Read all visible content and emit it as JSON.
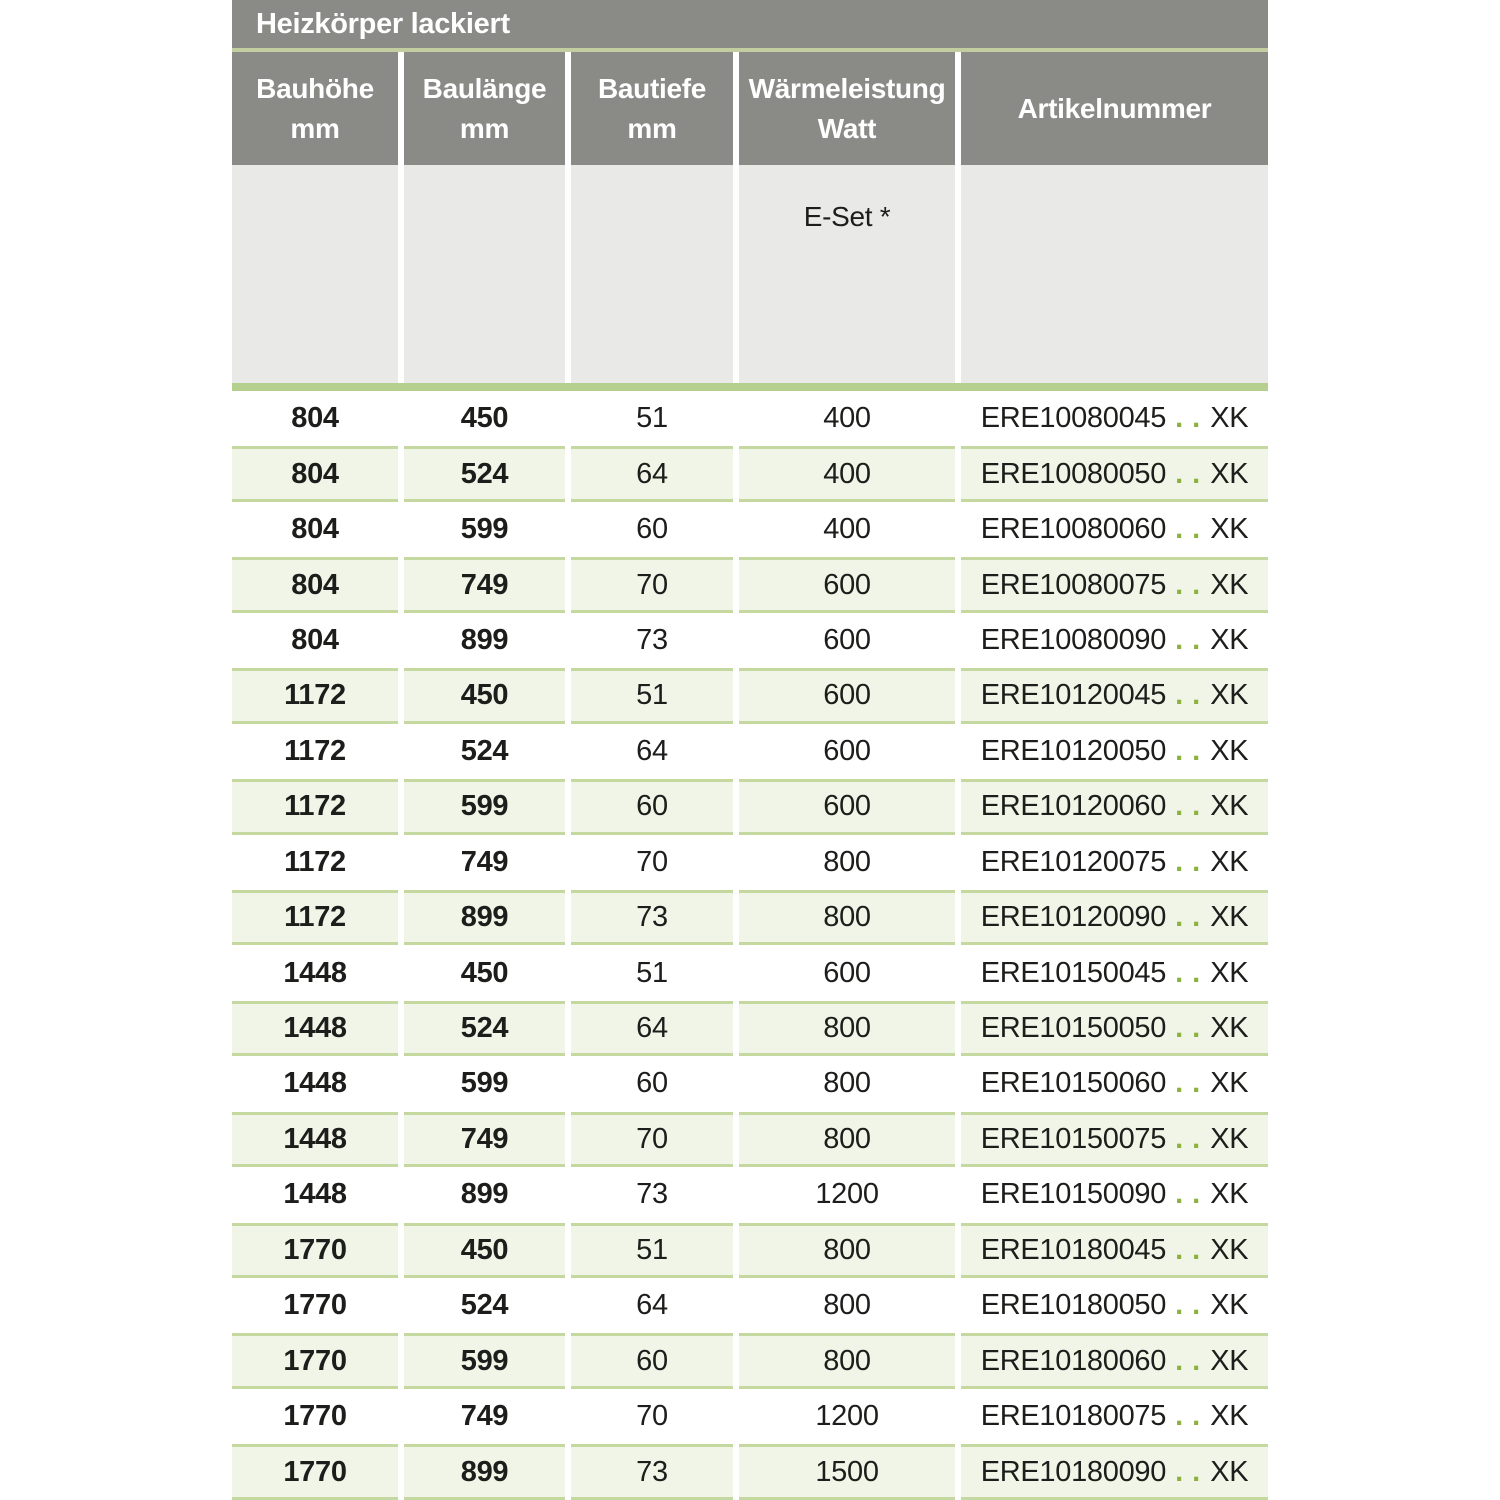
{
  "title": "Heizkörper lackiert",
  "columns": [
    {
      "label": "Bauhöhe",
      "unit": "mm"
    },
    {
      "label": "Baulänge",
      "unit": "mm"
    },
    {
      "label": "Bautiefe",
      "unit": "mm"
    },
    {
      "label": "Wärmeleistung",
      "unit": "Watt"
    },
    {
      "label": "Artikelnummer",
      "unit": ""
    }
  ],
  "subheader": {
    "eset_label": "E-Set *"
  },
  "rows": [
    {
      "bauhoehe": "804",
      "baulaenge": "450",
      "bautiefe": "51",
      "watt": "400",
      "artikel_prefix": "ERE10080045",
      "artikel_sep": "..",
      "artikel_suffix": "XK"
    },
    {
      "bauhoehe": "804",
      "baulaenge": "524",
      "bautiefe": "64",
      "watt": "400",
      "artikel_prefix": "ERE10080050",
      "artikel_sep": "..",
      "artikel_suffix": "XK"
    },
    {
      "bauhoehe": "804",
      "baulaenge": "599",
      "bautiefe": "60",
      "watt": "400",
      "artikel_prefix": "ERE10080060",
      "artikel_sep": "..",
      "artikel_suffix": "XK"
    },
    {
      "bauhoehe": "804",
      "baulaenge": "749",
      "bautiefe": "70",
      "watt": "600",
      "artikel_prefix": "ERE10080075",
      "artikel_sep": "..",
      "artikel_suffix": "XK"
    },
    {
      "bauhoehe": "804",
      "baulaenge": "899",
      "bautiefe": "73",
      "watt": "600",
      "artikel_prefix": "ERE10080090",
      "artikel_sep": "..",
      "artikel_suffix": "XK"
    },
    {
      "bauhoehe": "1172",
      "baulaenge": "450",
      "bautiefe": "51",
      "watt": "600",
      "artikel_prefix": "ERE10120045",
      "artikel_sep": "..",
      "artikel_suffix": "XK"
    },
    {
      "bauhoehe": "1172",
      "baulaenge": "524",
      "bautiefe": "64",
      "watt": "600",
      "artikel_prefix": "ERE10120050",
      "artikel_sep": "..",
      "artikel_suffix": "XK"
    },
    {
      "bauhoehe": "1172",
      "baulaenge": "599",
      "bautiefe": "60",
      "watt": "600",
      "artikel_prefix": "ERE10120060",
      "artikel_sep": "..",
      "artikel_suffix": "XK"
    },
    {
      "bauhoehe": "1172",
      "baulaenge": "749",
      "bautiefe": "70",
      "watt": "800",
      "artikel_prefix": "ERE10120075",
      "artikel_sep": "..",
      "artikel_suffix": "XK"
    },
    {
      "bauhoehe": "1172",
      "baulaenge": "899",
      "bautiefe": "73",
      "watt": "800",
      "artikel_prefix": "ERE10120090",
      "artikel_sep": "..",
      "artikel_suffix": "XK"
    },
    {
      "bauhoehe": "1448",
      "baulaenge": "450",
      "bautiefe": "51",
      "watt": "600",
      "artikel_prefix": "ERE10150045",
      "artikel_sep": "..",
      "artikel_suffix": "XK"
    },
    {
      "bauhoehe": "1448",
      "baulaenge": "524",
      "bautiefe": "64",
      "watt": "800",
      "artikel_prefix": "ERE10150050",
      "artikel_sep": "..",
      "artikel_suffix": "XK"
    },
    {
      "bauhoehe": "1448",
      "baulaenge": "599",
      "bautiefe": "60",
      "watt": "800",
      "artikel_prefix": "ERE10150060",
      "artikel_sep": "..",
      "artikel_suffix": "XK"
    },
    {
      "bauhoehe": "1448",
      "baulaenge": "749",
      "bautiefe": "70",
      "watt": "800",
      "artikel_prefix": "ERE10150075",
      "artikel_sep": "..",
      "artikel_suffix": "XK"
    },
    {
      "bauhoehe": "1448",
      "baulaenge": "899",
      "bautiefe": "73",
      "watt": "1200",
      "artikel_prefix": "ERE10150090",
      "artikel_sep": "..",
      "artikel_suffix": "XK"
    },
    {
      "bauhoehe": "1770",
      "baulaenge": "450",
      "bautiefe": "51",
      "watt": "800",
      "artikel_prefix": "ERE10180045",
      "artikel_sep": "..",
      "artikel_suffix": "XK"
    },
    {
      "bauhoehe": "1770",
      "baulaenge": "524",
      "bautiefe": "64",
      "watt": "800",
      "artikel_prefix": "ERE10180050",
      "artikel_sep": "..",
      "artikel_suffix": "XK"
    },
    {
      "bauhoehe": "1770",
      "baulaenge": "599",
      "bautiefe": "60",
      "watt": "800",
      "artikel_prefix": "ERE10180060",
      "artikel_sep": "..",
      "artikel_suffix": "XK"
    },
    {
      "bauhoehe": "1770",
      "baulaenge": "749",
      "bautiefe": "70",
      "watt": "1200",
      "artikel_prefix": "ERE10180075",
      "artikel_sep": "..",
      "artikel_suffix": "XK"
    },
    {
      "bauhoehe": "1770",
      "baulaenge": "899",
      "bautiefe": "73",
      "watt": "1500",
      "artikel_prefix": "ERE10180090",
      "artikel_sep": "..",
      "artikel_suffix": "XK"
    }
  ],
  "colors": {
    "header_gray": "#8a8a87",
    "title_separator_green": "#c2cda0",
    "subheader_gray": "#e9e9e8",
    "thick_bar_green": "#b5cf8e",
    "alt_row_bg": "#f1f5e8",
    "alt_row_border": "#c5d8a0",
    "artikel_dot_green": "#8bb23f",
    "text": "#1d1d1b"
  }
}
